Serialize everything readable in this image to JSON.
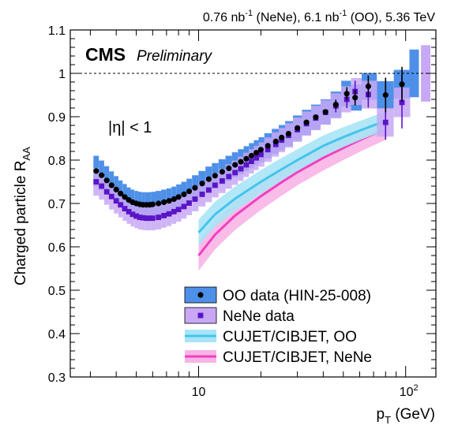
{
  "chart_data": {
    "type": "scatter",
    "title": "",
    "top_label": {
      "lumi1": "0.76 nb",
      "lumi1_sup": "-1",
      "sys1": " (NeNe), 6.1 nb",
      "lumi2_sup": "-1",
      "sys2": " (OO), 5.36 TeV"
    },
    "cms_label": "CMS",
    "preliminary_label": "Preliminary",
    "eta_label": "|η| < 1",
    "xlabel": {
      "main": "p",
      "sub": "T",
      "unit": " (GeV)"
    },
    "ylabel": {
      "main": "Charged particle R",
      "sub": "AA"
    },
    "x_scale": "log",
    "xlim": [
      2.4,
      140
    ],
    "ylim": [
      0.3,
      1.1
    ],
    "y_ticks": [
      0.3,
      0.4,
      0.5,
      0.6,
      0.7,
      0.8,
      0.9,
      1.0,
      1.1
    ],
    "y_tick_labels": [
      "0.3",
      "0.4",
      "0.5",
      "0.6",
      "0.7",
      "0.8",
      "0.9",
      "1",
      "1.1"
    ],
    "x_tick_labels": [
      {
        "value": 10,
        "base": "10",
        "exp": ""
      },
      {
        "value": 100,
        "base": "10",
        "exp": "2"
      }
    ],
    "reference_line": 1.0,
    "grid": false,
    "legend_position": "bottom-right",
    "legend": [
      {
        "label": "OO data (HIN-25-008)",
        "kind": "data",
        "series": "oo"
      },
      {
        "label": "NeNe data",
        "kind": "data",
        "series": "nene"
      },
      {
        "label": "CUJET/CIBJET, OO",
        "kind": "model",
        "series": "cujet_oo"
      },
      {
        "label": "CUJET/CIBJET, NeNe",
        "kind": "model",
        "series": "cujet_nene"
      }
    ],
    "series": [
      {
        "id": "oo",
        "marker": "circle",
        "color": "#000000",
        "band_color": "#4e90e8",
        "points": [
          {
            "x": 3.2,
            "y": 0.775,
            "sys": 0.035
          },
          {
            "x": 3.4,
            "y": 0.765,
            "sys": 0.034
          },
          {
            "x": 3.6,
            "y": 0.753,
            "sys": 0.033
          },
          {
            "x": 3.8,
            "y": 0.742,
            "sys": 0.032
          },
          {
            "x": 4.0,
            "y": 0.732,
            "sys": 0.031
          },
          {
            "x": 4.2,
            "y": 0.723,
            "sys": 0.03
          },
          {
            "x": 4.4,
            "y": 0.715,
            "sys": 0.03
          },
          {
            "x": 4.6,
            "y": 0.708,
            "sys": 0.029
          },
          {
            "x": 4.8,
            "y": 0.703,
            "sys": 0.029
          },
          {
            "x": 5.0,
            "y": 0.7,
            "sys": 0.029
          },
          {
            "x": 5.2,
            "y": 0.698,
            "sys": 0.029
          },
          {
            "x": 5.4,
            "y": 0.697,
            "sys": 0.029
          },
          {
            "x": 5.6,
            "y": 0.697,
            "sys": 0.029
          },
          {
            "x": 5.8,
            "y": 0.697,
            "sys": 0.029
          },
          {
            "x": 6.0,
            "y": 0.698,
            "sys": 0.029
          },
          {
            "x": 6.4,
            "y": 0.7,
            "sys": 0.029
          },
          {
            "x": 6.8,
            "y": 0.703,
            "sys": 0.029
          },
          {
            "x": 7.2,
            "y": 0.706,
            "sys": 0.029
          },
          {
            "x": 7.6,
            "y": 0.71,
            "sys": 0.029
          },
          {
            "x": 8.0,
            "y": 0.715,
            "sys": 0.029
          },
          {
            "x": 8.5,
            "y": 0.721,
            "sys": 0.029
          },
          {
            "x": 9.0,
            "y": 0.728,
            "sys": 0.029
          },
          {
            "x": 9.6,
            "y": 0.736,
            "sys": 0.029
          },
          {
            "x": 10.4,
            "y": 0.746,
            "sys": 0.029
          },
          {
            "x": 11.2,
            "y": 0.756,
            "sys": 0.029
          },
          {
            "x": 12.0,
            "y": 0.764,
            "sys": 0.029
          },
          {
            "x": 13.0,
            "y": 0.773,
            "sys": 0.029
          },
          {
            "x": 14.0,
            "y": 0.781,
            "sys": 0.029
          },
          {
            "x": 15.0,
            "y": 0.789,
            "sys": 0.029
          },
          {
            "x": 16.0,
            "y": 0.796,
            "sys": 0.029
          },
          {
            "x": 17.0,
            "y": 0.803,
            "sys": 0.029
          },
          {
            "x": 18.0,
            "y": 0.81,
            "sys": 0.029
          },
          {
            "x": 19.0,
            "y": 0.817,
            "sys": 0.029
          },
          {
            "x": 20.0,
            "y": 0.824,
            "sys": 0.029
          },
          {
            "x": 21.6,
            "y": 0.833,
            "sys": 0.029
          },
          {
            "x": 23.6,
            "y": 0.843,
            "sys": 0.029
          },
          {
            "x": 25.2,
            "y": 0.852,
            "sys": 0.029
          },
          {
            "x": 27.2,
            "y": 0.861,
            "sys": 0.029
          },
          {
            "x": 30.0,
            "y": 0.874,
            "sys": 0.029
          },
          {
            "x": 33.2,
            "y": 0.887,
            "sys": 0.029
          },
          {
            "x": 36.8,
            "y": 0.899,
            "sys": 0.029
          },
          {
            "x": 41.0,
            "y": 0.911,
            "sys": 0.029
          },
          {
            "x": 46.0,
            "y": 0.928,
            "sys": 0.03,
            "err": 0.01
          },
          {
            "x": 52.0,
            "y": 0.953,
            "sys": 0.03,
            "err": 0.015
          },
          {
            "x": 57.0,
            "y": 0.944,
            "sys": 0.03,
            "err": 0.018
          },
          {
            "x": 66.0,
            "y": 0.97,
            "sys": 0.031,
            "err": 0.025
          },
          {
            "x": 80.0,
            "y": 0.95,
            "sys": 0.032,
            "err": 0.04
          },
          {
            "x": 96.0,
            "y": 0.975,
            "sys": 0.033,
            "err": 0.04
          }
        ]
      },
      {
        "id": "nene",
        "marker": "square",
        "color": "#5a14c8",
        "band_color": "#c8a8f4",
        "points": [
          {
            "x": 3.2,
            "y": 0.75,
            "sys": 0.032
          },
          {
            "x": 3.4,
            "y": 0.74,
            "sys": 0.031
          },
          {
            "x": 3.6,
            "y": 0.727,
            "sys": 0.03
          },
          {
            "x": 3.8,
            "y": 0.716,
            "sys": 0.03
          },
          {
            "x": 4.0,
            "y": 0.706,
            "sys": 0.029
          },
          {
            "x": 4.2,
            "y": 0.697,
            "sys": 0.029
          },
          {
            "x": 4.4,
            "y": 0.688,
            "sys": 0.028
          },
          {
            "x": 4.6,
            "y": 0.681,
            "sys": 0.028
          },
          {
            "x": 4.8,
            "y": 0.675,
            "sys": 0.028
          },
          {
            "x": 5.0,
            "y": 0.671,
            "sys": 0.028
          },
          {
            "x": 5.2,
            "y": 0.668,
            "sys": 0.028
          },
          {
            "x": 5.4,
            "y": 0.667,
            "sys": 0.028
          },
          {
            "x": 5.6,
            "y": 0.666,
            "sys": 0.028
          },
          {
            "x": 5.8,
            "y": 0.666,
            "sys": 0.028
          },
          {
            "x": 6.0,
            "y": 0.666,
            "sys": 0.028
          },
          {
            "x": 6.4,
            "y": 0.668,
            "sys": 0.028
          },
          {
            "x": 6.8,
            "y": 0.672,
            "sys": 0.028
          },
          {
            "x": 7.2,
            "y": 0.676,
            "sys": 0.028
          },
          {
            "x": 7.6,
            "y": 0.681,
            "sys": 0.028
          },
          {
            "x": 8.0,
            "y": 0.686,
            "sys": 0.028
          },
          {
            "x": 8.5,
            "y": 0.693,
            "sys": 0.028
          },
          {
            "x": 9.0,
            "y": 0.701,
            "sys": 0.028
          },
          {
            "x": 9.6,
            "y": 0.71,
            "sys": 0.028
          },
          {
            "x": 10.4,
            "y": 0.721,
            "sys": 0.028
          },
          {
            "x": 11.2,
            "y": 0.731,
            "sys": 0.028
          },
          {
            "x": 12.0,
            "y": 0.742,
            "sys": 0.028
          },
          {
            "x": 13.0,
            "y": 0.752,
            "sys": 0.028
          },
          {
            "x": 14.0,
            "y": 0.762,
            "sys": 0.028
          },
          {
            "x": 15.0,
            "y": 0.771,
            "sys": 0.028
          },
          {
            "x": 16.0,
            "y": 0.78,
            "sys": 0.028
          },
          {
            "x": 17.0,
            "y": 0.789,
            "sys": 0.028
          },
          {
            "x": 18.0,
            "y": 0.797,
            "sys": 0.028
          },
          {
            "x": 19.0,
            "y": 0.805,
            "sys": 0.028
          },
          {
            "x": 20.0,
            "y": 0.813,
            "sys": 0.028
          },
          {
            "x": 21.6,
            "y": 0.824,
            "sys": 0.028
          },
          {
            "x": 23.6,
            "y": 0.836,
            "sys": 0.028
          },
          {
            "x": 25.2,
            "y": 0.846,
            "sys": 0.028
          },
          {
            "x": 27.2,
            "y": 0.857,
            "sys": 0.028
          },
          {
            "x": 30.0,
            "y": 0.87,
            "sys": 0.028
          },
          {
            "x": 33.2,
            "y": 0.884,
            "sys": 0.028
          },
          {
            "x": 36.8,
            "y": 0.897,
            "sys": 0.028
          },
          {
            "x": 41.0,
            "y": 0.91,
            "sys": 0.028
          },
          {
            "x": 46.0,
            "y": 0.925,
            "sys": 0.029,
            "err": 0.015
          },
          {
            "x": 52.0,
            "y": 0.94,
            "sys": 0.03,
            "err": 0.02
          },
          {
            "x": 57.0,
            "y": 0.958,
            "sys": 0.031,
            "err": 0.025
          },
          {
            "x": 66.0,
            "y": 0.951,
            "sys": 0.032,
            "err": 0.03
          },
          {
            "x": 80.0,
            "y": 0.887,
            "sys": 0.033,
            "err": 0.04
          },
          {
            "x": 96.0,
            "y": 0.933,
            "sys": 0.034,
            "err": 0.06
          }
        ]
      },
      {
        "id": "cujet_oo",
        "kind": "model",
        "color": "#44c4ec",
        "band_color": "#a8e4f6",
        "x": [
          10,
          12,
          15,
          20,
          25,
          30,
          40,
          50,
          60,
          70,
          80
        ],
        "y": [
          0.633,
          0.675,
          0.711,
          0.75,
          0.778,
          0.8,
          0.833,
          0.853,
          0.868,
          0.88,
          0.89
        ],
        "width": [
          0.03,
          0.029,
          0.028,
          0.027,
          0.026,
          0.025,
          0.024,
          0.023,
          0.022,
          0.022,
          0.021
        ]
      },
      {
        "id": "cujet_nene",
        "kind": "model",
        "color": "#f040c0",
        "band_color": "#f8b4e6",
        "x": [
          10,
          12,
          15,
          20,
          25,
          30,
          40,
          50,
          60,
          70,
          80
        ],
        "y": [
          0.58,
          0.628,
          0.672,
          0.717,
          0.748,
          0.772,
          0.805,
          0.828,
          0.846,
          0.86,
          0.872
        ],
        "width": [
          0.035,
          0.034,
          0.033,
          0.032,
          0.031,
          0.03,
          0.029,
          0.028,
          0.027,
          0.026,
          0.025
        ]
      }
    ],
    "norm_boxes": [
      {
        "series": "oo",
        "x": 110,
        "low": 0.945,
        "high": 1.055,
        "color": "#4e90e8"
      },
      {
        "series": "nene",
        "x": 125,
        "low": 0.935,
        "high": 1.065,
        "color": "#c8a8f4"
      }
    ]
  }
}
